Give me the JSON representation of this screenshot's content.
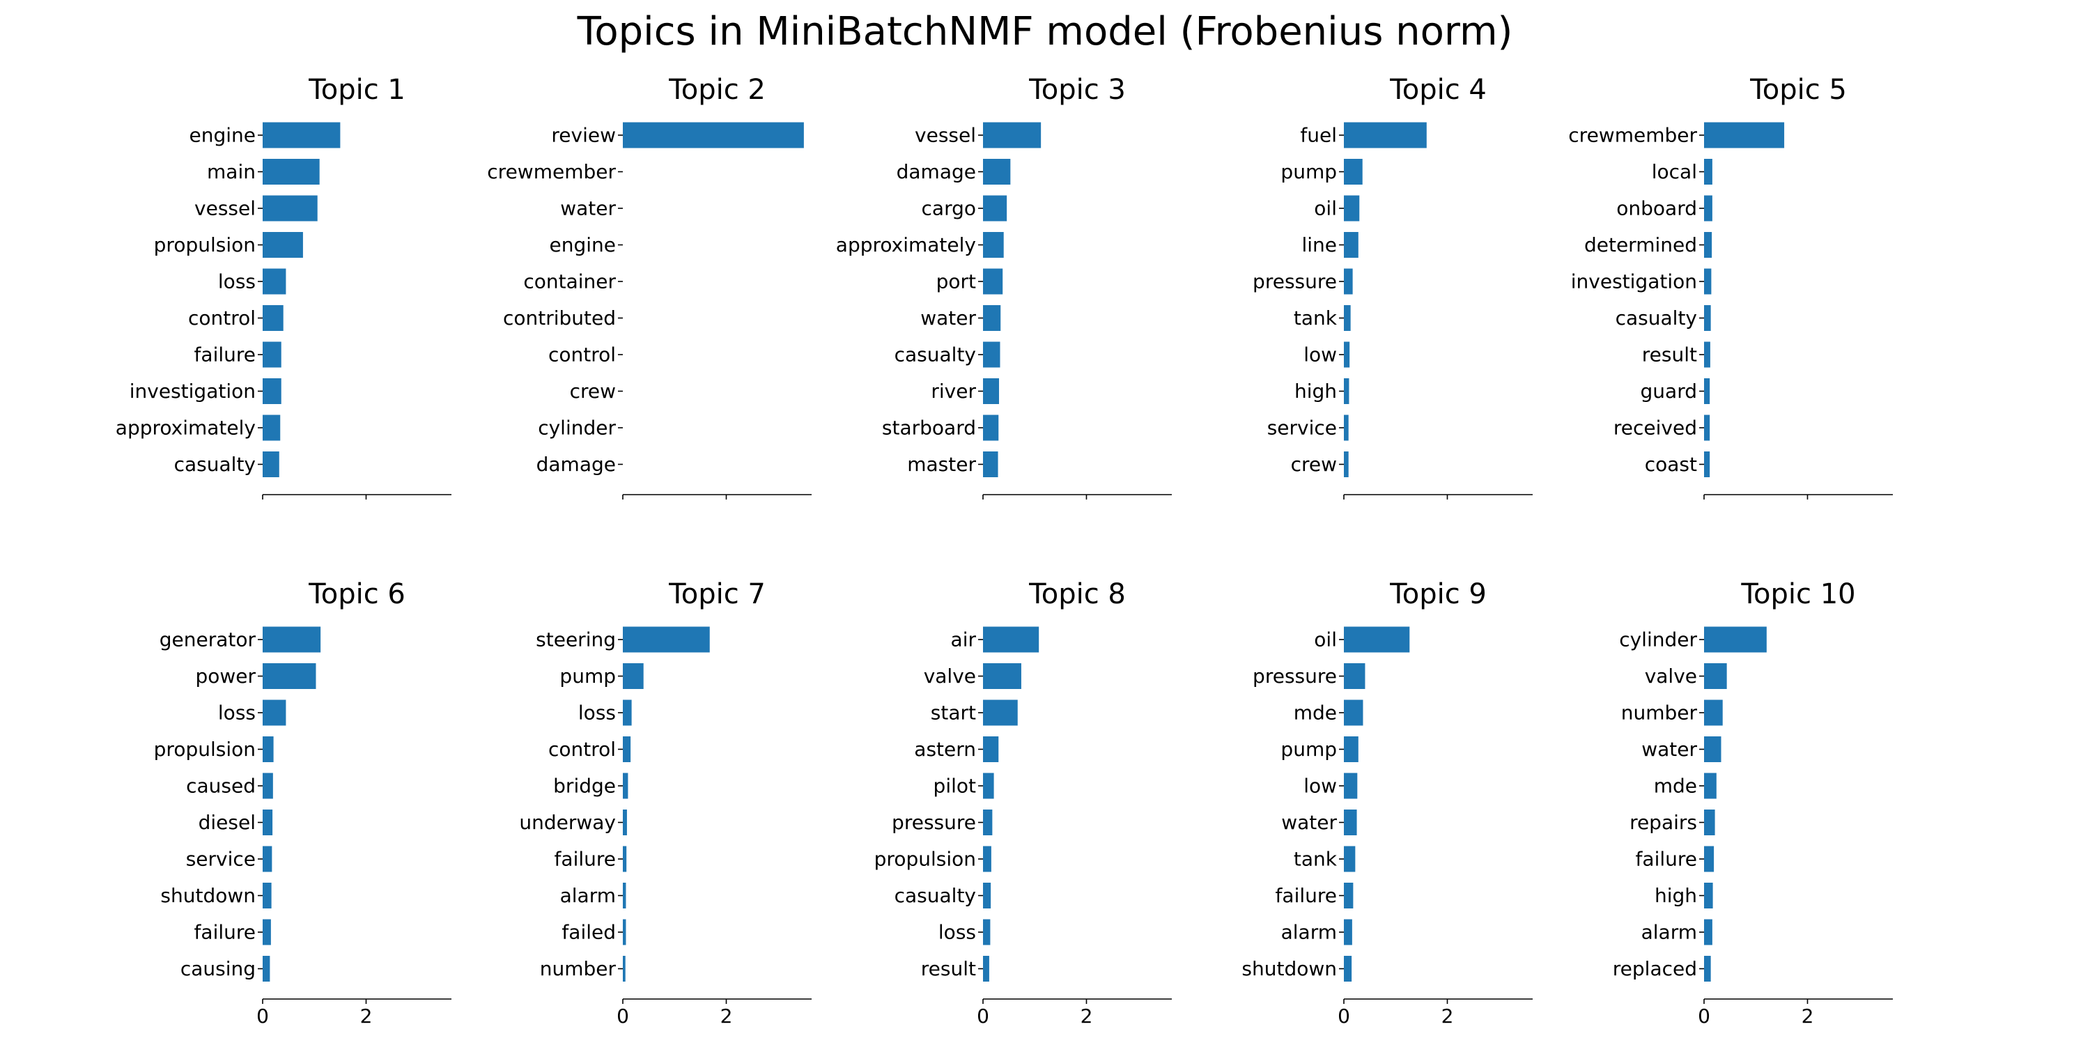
{
  "title": "Topics in MiniBatchNMF model (Frobenius norm)",
  "colors": {
    "bar": "#1f77b4",
    "axis": "#000000",
    "text": "#000000"
  },
  "chart_data": [
    {
      "type": "bar",
      "orientation": "horizontal",
      "title": "Topic 1",
      "categories": [
        "engine",
        "main",
        "vessel",
        "propulsion",
        "loss",
        "control",
        "failure",
        "investigation",
        "approximately",
        "casualty"
      ],
      "values": [
        1.5,
        1.1,
        1.06,
        0.78,
        0.45,
        0.4,
        0.36,
        0.36,
        0.34,
        0.32
      ],
      "xticks": [
        0,
        2
      ],
      "xlim": [
        0,
        3.65
      ],
      "show_tick_labels": false
    },
    {
      "type": "bar",
      "orientation": "horizontal",
      "title": "Topic 2",
      "categories": [
        "review",
        "crewmember",
        "water",
        "engine",
        "container",
        "contributed",
        "control",
        "crew",
        "cylinder",
        "damage"
      ],
      "values": [
        3.5,
        0.0,
        0.0,
        0.0,
        0.0,
        0.0,
        0.0,
        0.0,
        0.0,
        0.0
      ],
      "xticks": [
        0,
        2
      ],
      "xlim": [
        0,
        3.65
      ],
      "show_tick_labels": false
    },
    {
      "type": "bar",
      "orientation": "horizontal",
      "title": "Topic 3",
      "categories": [
        "vessel",
        "damage",
        "cargo",
        "approximately",
        "port",
        "water",
        "casualty",
        "river",
        "starboard",
        "master"
      ],
      "values": [
        1.12,
        0.53,
        0.46,
        0.4,
        0.38,
        0.34,
        0.33,
        0.31,
        0.3,
        0.29
      ],
      "xticks": [
        0,
        2
      ],
      "xlim": [
        0,
        3.65
      ],
      "show_tick_labels": false
    },
    {
      "type": "bar",
      "orientation": "horizontal",
      "title": "Topic 4",
      "categories": [
        "fuel",
        "pump",
        "oil",
        "line",
        "pressure",
        "tank",
        "low",
        "high",
        "service",
        "crew"
      ],
      "values": [
        1.6,
        0.36,
        0.3,
        0.28,
        0.17,
        0.13,
        0.11,
        0.1,
        0.09,
        0.09
      ],
      "xticks": [
        0,
        2
      ],
      "xlim": [
        0,
        3.65
      ],
      "show_tick_labels": false
    },
    {
      "type": "bar",
      "orientation": "horizontal",
      "title": "Topic 5",
      "categories": [
        "crewmember",
        "local",
        "onboard",
        "determined",
        "investigation",
        "casualty",
        "result",
        "guard",
        "received",
        "coast"
      ],
      "values": [
        1.55,
        0.16,
        0.16,
        0.15,
        0.14,
        0.13,
        0.12,
        0.11,
        0.11,
        0.11
      ],
      "xticks": [
        0,
        2
      ],
      "xlim": [
        0,
        3.65
      ],
      "show_tick_labels": false
    },
    {
      "type": "bar",
      "orientation": "horizontal",
      "title": "Topic 6",
      "categories": [
        "generator",
        "power",
        "loss",
        "propulsion",
        "caused",
        "diesel",
        "service",
        "shutdown",
        "failure",
        "causing"
      ],
      "values": [
        1.12,
        1.03,
        0.45,
        0.21,
        0.2,
        0.19,
        0.18,
        0.17,
        0.16,
        0.14
      ],
      "xticks": [
        0,
        2
      ],
      "xlim": [
        0,
        3.65
      ],
      "show_tick_labels": true
    },
    {
      "type": "bar",
      "orientation": "horizontal",
      "title": "Topic 7",
      "categories": [
        "steering",
        "pump",
        "loss",
        "control",
        "bridge",
        "underway",
        "failure",
        "alarm",
        "failed",
        "number"
      ],
      "values": [
        1.68,
        0.4,
        0.17,
        0.15,
        0.1,
        0.08,
        0.07,
        0.06,
        0.06,
        0.05
      ],
      "xticks": [
        0,
        2
      ],
      "xlim": [
        0,
        3.65
      ],
      "show_tick_labels": true
    },
    {
      "type": "bar",
      "orientation": "horizontal",
      "title": "Topic 8",
      "categories": [
        "air",
        "valve",
        "start",
        "astern",
        "pilot",
        "pressure",
        "propulsion",
        "casualty",
        "loss",
        "result"
      ],
      "values": [
        1.08,
        0.74,
        0.67,
        0.3,
        0.21,
        0.18,
        0.16,
        0.15,
        0.14,
        0.12
      ],
      "xticks": [
        0,
        2
      ],
      "xlim": [
        0,
        3.65
      ],
      "show_tick_labels": true
    },
    {
      "type": "bar",
      "orientation": "horizontal",
      "title": "Topic 9",
      "categories": [
        "oil",
        "pressure",
        "mde",
        "pump",
        "low",
        "water",
        "tank",
        "failure",
        "alarm",
        "shutdown"
      ],
      "values": [
        1.27,
        0.41,
        0.37,
        0.28,
        0.26,
        0.25,
        0.22,
        0.18,
        0.16,
        0.15
      ],
      "xticks": [
        0,
        2
      ],
      "xlim": [
        0,
        3.65
      ],
      "show_tick_labels": true
    },
    {
      "type": "bar",
      "orientation": "horizontal",
      "title": "Topic 10",
      "categories": [
        "cylinder",
        "valve",
        "number",
        "water",
        "mde",
        "repairs",
        "failure",
        "high",
        "alarm",
        "replaced"
      ],
      "values": [
        1.21,
        0.44,
        0.36,
        0.33,
        0.24,
        0.21,
        0.19,
        0.17,
        0.16,
        0.13
      ],
      "xticks": [
        0,
        2
      ],
      "xlim": [
        0,
        3.65
      ],
      "show_tick_labels": true
    }
  ]
}
